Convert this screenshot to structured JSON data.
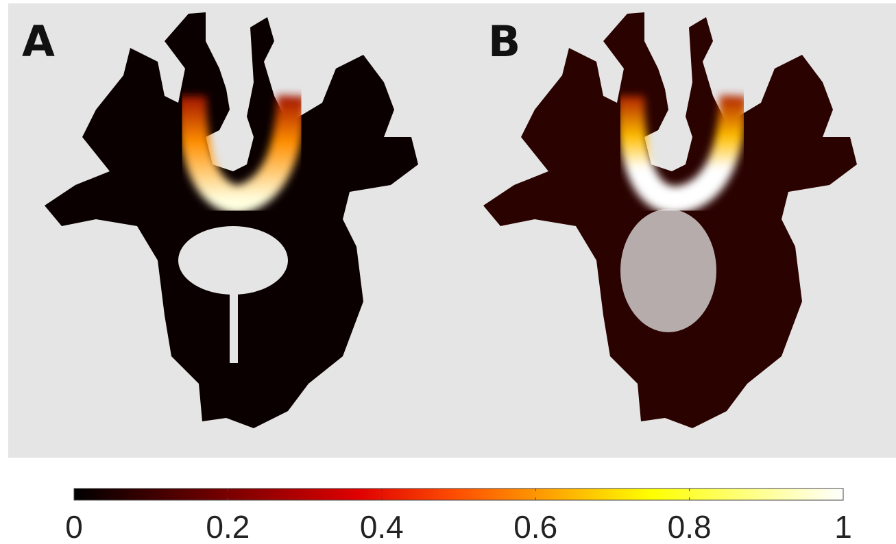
{
  "panels": [
    {
      "label": "A"
    },
    {
      "label": "B"
    }
  ],
  "colorbar": {
    "lim": [
      0,
      1
    ],
    "ticks": [
      0,
      0.2,
      0.4,
      0.6,
      0.8,
      1
    ]
  }
}
